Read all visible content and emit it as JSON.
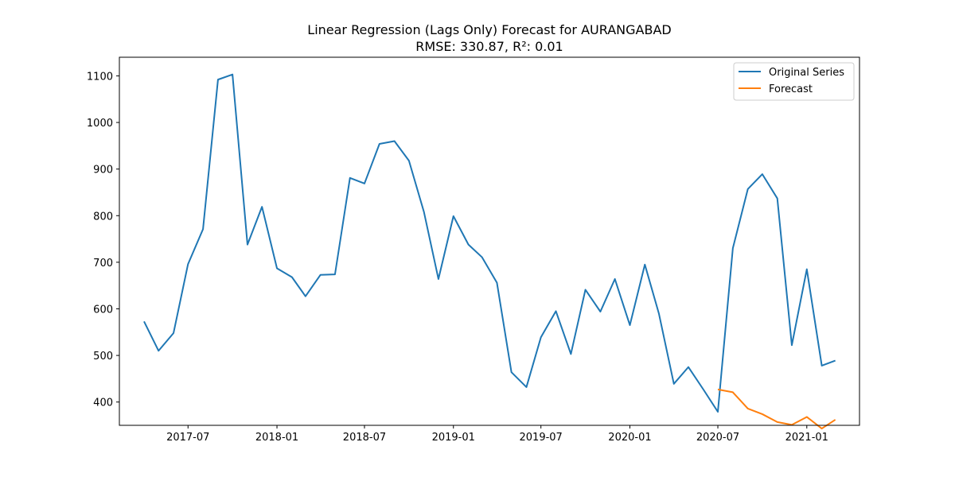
{
  "chart_data": {
    "type": "line",
    "title": "Linear Regression (Lags Only) Forecast for AURANGABAD",
    "subtitle": "RMSE: 330.87, R²: 0.01",
    "xlabel": "",
    "ylabel": "",
    "xlim": [
      "2017-02-09",
      "2021-04-20"
    ],
    "ylim": [
      350,
      1140
    ],
    "x_ticks": [
      "2017-07",
      "2018-01",
      "2018-07",
      "2019-01",
      "2019-07",
      "2020-01",
      "2020-07",
      "2021-01"
    ],
    "y_ticks": [
      400,
      500,
      600,
      700,
      800,
      900,
      1000,
      1100
    ],
    "grid": false,
    "legend_position": "top-right",
    "series": [
      {
        "name": "Original Series",
        "color": "#1f77b4",
        "x": [
          "2017-04",
          "2017-05",
          "2017-06",
          "2017-07",
          "2017-08",
          "2017-09",
          "2017-10",
          "2017-11",
          "2017-12",
          "2018-01",
          "2018-02",
          "2018-03",
          "2018-04",
          "2018-05",
          "2018-06",
          "2018-07",
          "2018-08",
          "2018-09",
          "2018-10",
          "2018-11",
          "2018-12",
          "2019-01",
          "2019-02",
          "2019-03",
          "2019-04",
          "2019-05",
          "2019-06",
          "2019-07",
          "2019-08",
          "2019-09",
          "2019-10",
          "2019-11",
          "2019-12",
          "2020-01",
          "2020-02",
          "2020-03",
          "2020-04",
          "2020-05",
          "2020-06",
          "2020-07",
          "2020-08",
          "2020-09",
          "2020-10",
          "2020-11",
          "2020-12",
          "2021-01",
          "2021-02",
          "2021-03"
        ],
        "values": [
          573,
          510,
          548,
          696,
          771,
          1092,
          1103,
          738,
          819,
          687,
          668,
          627,
          673,
          674,
          881,
          869,
          954,
          960,
          918,
          808,
          664,
          799,
          738,
          711,
          656,
          464,
          432,
          539,
          595,
          503,
          641,
          594,
          664,
          565,
          695,
          590,
          439,
          475,
          427,
          379,
          730,
          857,
          889,
          837,
          522,
          685,
          478,
          489
        ]
      },
      {
        "name": "Forecast",
        "color": "#ff7f0e",
        "x": [
          "2020-07",
          "2020-08",
          "2020-09",
          "2020-10",
          "2020-11",
          "2020-12",
          "2021-01",
          "2021-02",
          "2021-03"
        ],
        "values": [
          427,
          421,
          386,
          374,
          357,
          351,
          368,
          343,
          362
        ]
      }
    ]
  }
}
